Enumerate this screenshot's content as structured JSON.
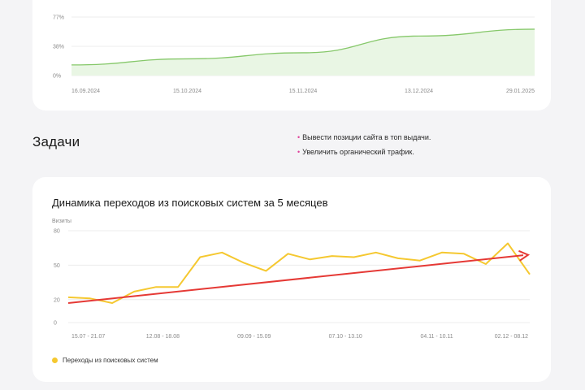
{
  "top_chart": {
    "chart_data": {
      "type": "area",
      "x": [
        "16.09.2024",
        "15.10.2024",
        "15.11.2024",
        "13.12.2024",
        "29.01.2025"
      ],
      "values": [
        14,
        22,
        30,
        52,
        61
      ],
      "ylim": [
        0,
        77
      ],
      "yticks": [
        "77%",
        "38%",
        "0%"
      ],
      "grid": true,
      "colors": {
        "line": "#86c86a",
        "fill": "#e9f6e4"
      }
    }
  },
  "tasks": {
    "title": "Задачи",
    "items": [
      "Вывести позиции сайта в топ выдачи.",
      "Увеличить органический трафик."
    ]
  },
  "bottom_chart": {
    "chart_data": {
      "type": "line",
      "title": "Динамика переходов из поисковых систем за 5 месяцев",
      "ylabel": "Визиты",
      "ylim": [
        0,
        80
      ],
      "yticks": [
        80,
        50,
        20,
        0
      ],
      "x_tick_labels": [
        "15.07 - 21.07",
        "12.08 - 18.08",
        "09.09 - 15.09",
        "07.10 - 13.10",
        "04.11 - 10.11",
        "02.12 - 08.12"
      ],
      "grid": true,
      "legend_position": "bottom-left",
      "series": [
        {
          "name": "Переходы из поисковых систем",
          "color": "#f5c830",
          "values": [
            22,
            21,
            17,
            27,
            31,
            31,
            57,
            61,
            52,
            45,
            60,
            55,
            58,
            57,
            61,
            56,
            54,
            61,
            60,
            51,
            69,
            42
          ]
        }
      ],
      "trend": {
        "color": "#e53935",
        "start": 17,
        "end": 59
      }
    }
  }
}
